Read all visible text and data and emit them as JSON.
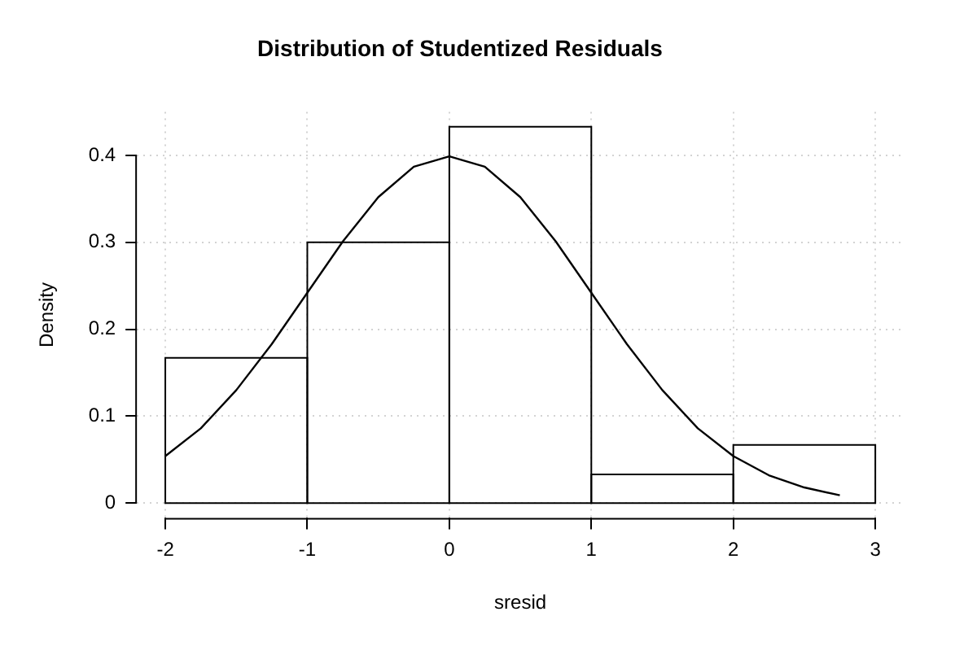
{
  "chart_data": {
    "type": "histogram",
    "title": "Distribution of Studentized Residuals",
    "xlabel": "sresid",
    "ylabel": "Density",
    "series": [
      {
        "type": "histogram",
        "color": "#000000",
        "bins": [
          -2,
          -1,
          0,
          1,
          2,
          3
        ],
        "values": [
          0.167,
          0.3,
          0.433,
          0.033,
          0.067
        ]
      },
      {
        "type": "line",
        "color": "#000000",
        "marker": "none",
        "x": [
          -2,
          -1.75,
          -1.5,
          -1.25,
          -1,
          -0.75,
          -0.5,
          -0.25,
          0,
          0.25,
          0.5,
          0.75,
          1,
          1.25,
          1.5,
          1.75,
          2,
          2.25,
          2.5,
          2.75
        ],
        "values": [
          0.054,
          0.086,
          0.13,
          0.183,
          0.242,
          0.301,
          0.352,
          0.387,
          0.399,
          0.387,
          0.352,
          0.301,
          0.242,
          0.183,
          0.13,
          0.086,
          0.054,
          0.032,
          0.018,
          0.009
        ]
      }
    ],
    "xlim": [
      -2.2,
      3.2
    ],
    "xticks": [
      -2,
      -1,
      0,
      1,
      2,
      3
    ],
    "ylim": [
      -0.017,
      0.45
    ],
    "yticks": [
      0,
      0.1,
      0.2,
      0.3,
      0.4
    ],
    "grid": true
  }
}
